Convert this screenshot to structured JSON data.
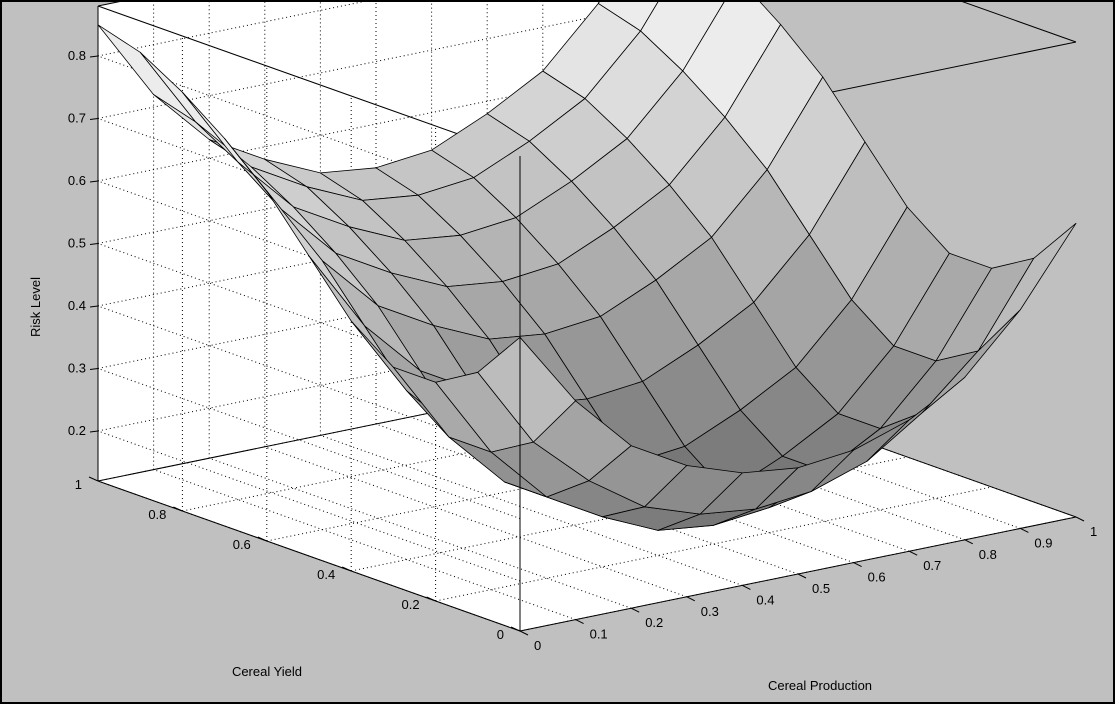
{
  "colors": {
    "figure_background": "#c0c0c0",
    "axes_background": "#ffffff",
    "grid": "#000000",
    "surface_light": "#ececec",
    "surface_dark": "#707070",
    "edge": "#000000"
  },
  "chart_data": {
    "type": "surface",
    "title": "",
    "xlabel": "Cereal Production",
    "ylabel": "Cereal Yield",
    "zlabel": "Risk Level",
    "xlim": [
      0,
      1
    ],
    "ylim": [
      0,
      1
    ],
    "zlim": [
      0.12,
      0.88
    ],
    "xticks": [
      0,
      0.1,
      0.2,
      0.3,
      0.4,
      0.5,
      0.6,
      0.7,
      0.8,
      0.9,
      1
    ],
    "xtick_labels": [
      "0",
      "0.1",
      "0.2",
      "0.3",
      "0.4",
      "0.5",
      "0.6",
      "0.7",
      "0.8",
      "0.9",
      "1"
    ],
    "yticks": [
      0,
      0.2,
      0.4,
      0.6,
      0.8,
      1
    ],
    "ytick_labels": [
      "0",
      "0.2",
      "0.4",
      "0.6",
      "0.8",
      "1"
    ],
    "zticks": [
      0.2,
      0.3,
      0.4,
      0.5,
      0.6,
      0.7,
      0.8
    ],
    "ztick_labels": [
      "0.2",
      "0.3",
      "0.4",
      "0.5",
      "0.6",
      "0.7",
      "0.8"
    ],
    "grid": true,
    "box": true,
    "colormap": "gray (light on high, dark on low)",
    "x": [
      0,
      0.1,
      0.2,
      0.3,
      0.4,
      0.5,
      0.6,
      0.7,
      0.8,
      0.9,
      1
    ],
    "y": [
      0,
      0.1,
      0.2,
      0.3,
      0.4,
      0.5,
      0.6,
      0.7,
      0.8,
      0.9,
      1
    ],
    "z": [
      [
        0.59,
        0.47,
        0.38,
        0.33,
        0.3,
        0.29,
        0.3,
        0.33,
        0.38,
        0.47,
        0.59
      ],
      [
        0.51,
        0.38,
        0.3,
        0.24,
        0.21,
        0.2,
        0.21,
        0.24,
        0.3,
        0.38,
        0.51
      ],
      [
        0.47,
        0.34,
        0.25,
        0.2,
        0.16,
        0.15,
        0.16,
        0.2,
        0.25,
        0.34,
        0.47
      ],
      [
        0.47,
        0.34,
        0.25,
        0.2,
        0.16,
        0.15,
        0.16,
        0.2,
        0.25,
        0.34,
        0.47
      ],
      [
        0.52,
        0.39,
        0.3,
        0.25,
        0.21,
        0.2,
        0.21,
        0.25,
        0.3,
        0.39,
        0.52
      ],
      [
        0.6,
        0.47,
        0.38,
        0.33,
        0.29,
        0.28,
        0.29,
        0.33,
        0.38,
        0.47,
        0.6
      ],
      [
        0.68,
        0.55,
        0.46,
        0.41,
        0.37,
        0.36,
        0.37,
        0.41,
        0.46,
        0.55,
        0.68
      ],
      [
        0.74,
        0.61,
        0.52,
        0.47,
        0.43,
        0.42,
        0.43,
        0.47,
        0.52,
        0.61,
        0.74
      ],
      [
        0.79,
        0.66,
        0.57,
        0.52,
        0.48,
        0.47,
        0.48,
        0.52,
        0.57,
        0.66,
        0.79
      ],
      [
        0.83,
        0.7,
        0.61,
        0.56,
        0.52,
        0.51,
        0.52,
        0.56,
        0.61,
        0.7,
        0.83
      ],
      [
        0.85,
        0.72,
        0.63,
        0.58,
        0.54,
        0.53,
        0.54,
        0.58,
        0.63,
        0.72,
        0.85
      ]
    ]
  }
}
